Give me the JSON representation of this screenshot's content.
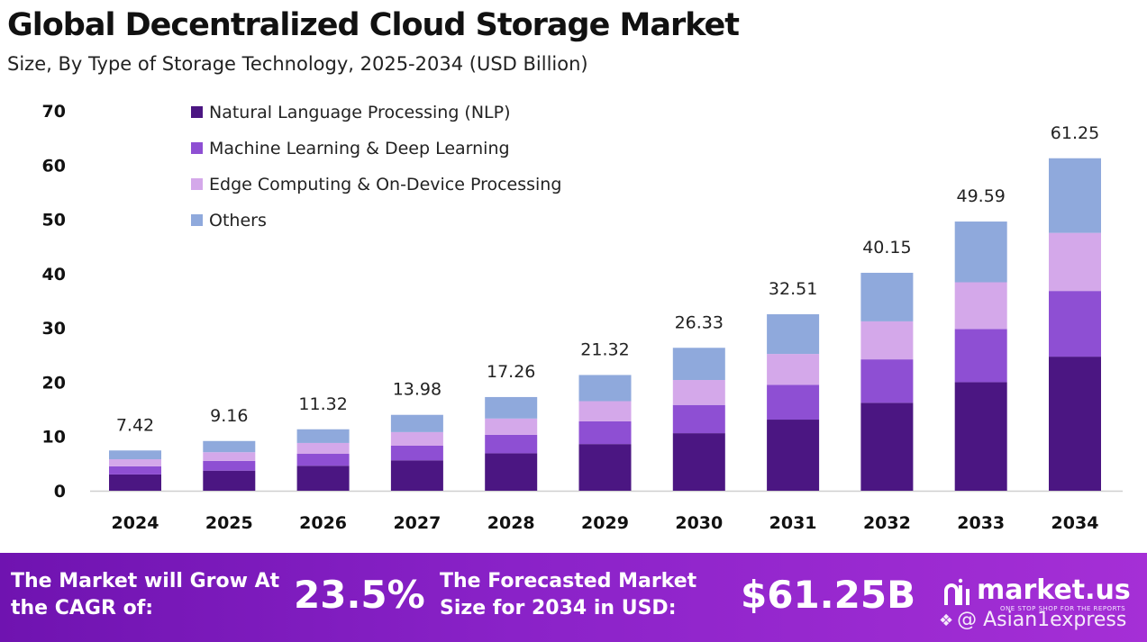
{
  "header": {
    "title": "Global Decentralized Cloud Storage Market",
    "subtitle": "Size, By Type of Storage Technology, 2025-2034 (USD Billion)"
  },
  "chart_data": {
    "type": "bar",
    "stacked": true,
    "categories": [
      "2024",
      "2025",
      "2026",
      "2027",
      "2028",
      "2029",
      "2030",
      "2031",
      "2032",
      "2033",
      "2034"
    ],
    "series": [
      {
        "name": "Natural Language Processing (NLP)",
        "color": "#4b1682",
        "values": [
          3.0,
          3.7,
          4.6,
          5.6,
          6.9,
          8.6,
          10.6,
          13.1,
          16.2,
          20.0,
          24.7
        ]
      },
      {
        "name": "Machine Learning & Deep Learning",
        "color": "#8e4fd3",
        "values": [
          1.5,
          1.8,
          2.2,
          2.7,
          3.4,
          4.2,
          5.2,
          6.4,
          8.0,
          9.8,
          12.1
        ]
      },
      {
        "name": "Edge Computing & On-Device Processing",
        "color": "#d4a8ea",
        "values": [
          1.3,
          1.6,
          2.0,
          2.5,
          3.0,
          3.7,
          4.6,
          5.7,
          7.0,
          8.6,
          10.7
        ]
      },
      {
        "name": "Others",
        "color": "#8fa9dc",
        "values": [
          1.62,
          2.06,
          2.52,
          3.18,
          3.96,
          4.82,
          5.93,
          7.31,
          8.95,
          11.19,
          13.75
        ]
      }
    ],
    "totals": [
      "7.42",
      "9.16",
      "11.32",
      "13.98",
      "17.26",
      "21.32",
      "26.33",
      "32.51",
      "40.15",
      "49.59",
      "61.25"
    ],
    "y_ticks": [
      "0",
      "10",
      "20",
      "30",
      "40",
      "50",
      "60",
      "70"
    ],
    "ylim": [
      0,
      70
    ],
    "xlabel": "",
    "ylabel": "",
    "grid": false,
    "legend_position": "top-left"
  },
  "footer": {
    "cagr_label": "The Market will Grow At the CAGR of:",
    "cagr_value": "23.5%",
    "forecast_label": "The Forecasted Market Size for 2034 in USD:",
    "forecast_value": "$61.25B",
    "brand": "market.us",
    "brand_tagline": "ONE STOP SHOP FOR THE REPORTS",
    "watermark": "@ Asian1express",
    "background_color": "#8a22c8"
  }
}
